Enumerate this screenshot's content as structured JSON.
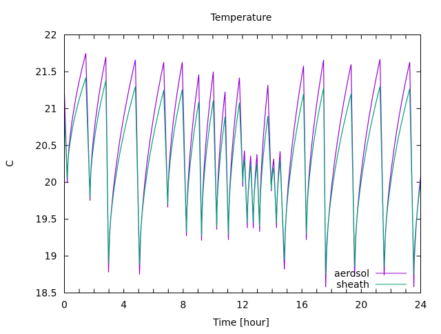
{
  "chart_data": {
    "type": "line",
    "title": "Temperature",
    "xlabel": "Time [hour]",
    "ylabel": "C",
    "xlim": [
      0,
      24
    ],
    "ylim": [
      18.5,
      22
    ],
    "xticks": [
      0,
      4,
      8,
      12,
      16,
      20,
      24
    ],
    "xminor_step": 1,
    "yticks": [
      18.5,
      19,
      19.5,
      20,
      20.5,
      21,
      21.5,
      22
    ],
    "ytick_labels": [
      "18.5",
      "19",
      "19.5",
      "20",
      "20.5",
      "21",
      "21.5",
      "22"
    ],
    "grid": false,
    "legend_position": "bottom-right",
    "series": [
      {
        "name": "aerosol",
        "color": "#9400d3",
        "points": [
          [
            0,
            21.2
          ],
          [
            0.19,
            19.99
          ],
          [
            1.44,
            21.75
          ],
          [
            1.72,
            19.75
          ],
          [
            2.79,
            21.7
          ],
          [
            2.97,
            18.78
          ],
          [
            4.78,
            21.66
          ],
          [
            5.06,
            18.75
          ],
          [
            6.69,
            21.63
          ],
          [
            6.96,
            19.66
          ],
          [
            7.94,
            21.63
          ],
          [
            8.22,
            19.27
          ],
          [
            9.05,
            21.46
          ],
          [
            9.24,
            19.21
          ],
          [
            10.03,
            21.5
          ],
          [
            10.26,
            19.36
          ],
          [
            10.82,
            21.23
          ],
          [
            11.05,
            19.22
          ],
          [
            11.79,
            21.42
          ],
          [
            12.02,
            19.94
          ],
          [
            12.13,
            20.43
          ],
          [
            12.32,
            19.38
          ],
          [
            12.55,
            20.36
          ],
          [
            12.73,
            19.38
          ],
          [
            12.97,
            20.38
          ],
          [
            13.15,
            19.33
          ],
          [
            13.71,
            21.32
          ],
          [
            13.94,
            19.88
          ],
          [
            14.1,
            20.32
          ],
          [
            14.29,
            19.38
          ],
          [
            14.53,
            20.42
          ],
          [
            14.82,
            18.82
          ],
          [
            16.11,
            21.58
          ],
          [
            16.3,
            19.22
          ],
          [
            17.46,
            21.66
          ],
          [
            17.6,
            18.58
          ],
          [
            19.31,
            21.6
          ],
          [
            19.55,
            18.72
          ],
          [
            21.26,
            21.67
          ],
          [
            21.54,
            18.74
          ],
          [
            23.26,
            21.63
          ],
          [
            23.54,
            18.58
          ],
          [
            24.0,
            20.08
          ]
        ]
      },
      {
        "name": "sheath",
        "color": "#009e73",
        "points": [
          [
            0,
            20.9
          ],
          [
            0.19,
            20.05
          ],
          [
            1.44,
            21.42
          ],
          [
            1.72,
            19.8
          ],
          [
            2.79,
            21.38
          ],
          [
            2.97,
            18.9
          ],
          [
            4.78,
            21.3
          ],
          [
            5.06,
            18.88
          ],
          [
            6.69,
            21.25
          ],
          [
            6.96,
            19.7
          ],
          [
            7.94,
            21.26
          ],
          [
            8.22,
            19.32
          ],
          [
            9.05,
            21.09
          ],
          [
            9.24,
            19.28
          ],
          [
            10.03,
            21.11
          ],
          [
            10.26,
            19.4
          ],
          [
            10.82,
            20.89
          ],
          [
            11.05,
            19.3
          ],
          [
            11.79,
            21.08
          ],
          [
            12.02,
            20.0
          ],
          [
            12.13,
            20.3
          ],
          [
            12.32,
            19.45
          ],
          [
            12.55,
            20.25
          ],
          [
            12.73,
            19.45
          ],
          [
            12.97,
            20.25
          ],
          [
            13.15,
            19.4
          ],
          [
            13.71,
            20.9
          ],
          [
            13.94,
            19.9
          ],
          [
            14.1,
            20.2
          ],
          [
            14.29,
            19.45
          ],
          [
            14.53,
            20.3
          ],
          [
            14.82,
            18.95
          ],
          [
            16.11,
            21.2
          ],
          [
            16.3,
            19.3
          ],
          [
            17.46,
            21.28
          ],
          [
            17.6,
            18.75
          ],
          [
            19.31,
            21.2
          ],
          [
            19.55,
            18.85
          ],
          [
            21.26,
            21.3
          ],
          [
            21.54,
            18.85
          ],
          [
            23.26,
            21.27
          ],
          [
            23.54,
            18.75
          ],
          [
            24.0,
            20.0
          ]
        ]
      }
    ]
  }
}
